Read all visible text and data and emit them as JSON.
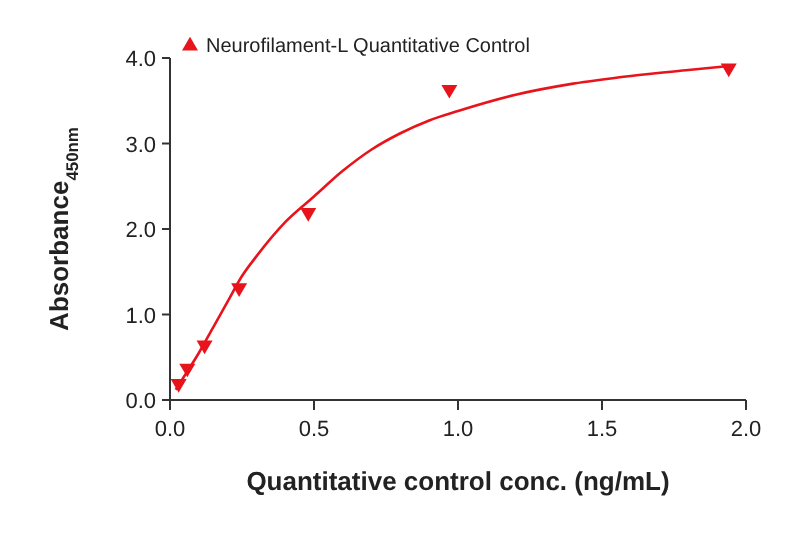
{
  "chart_data": {
    "type": "scatter",
    "xlabel": "Quantitative control conc. (ng/mL)",
    "ylabel": "Absorbance$_{450nm}$",
    "xlim": [
      0,
      2
    ],
    "xticks": [
      {
        "value": 0,
        "label": "0.0"
      },
      {
        "value": 0.5,
        "label": "0.5"
      },
      {
        "value": 1,
        "label": "1.0"
      },
      {
        "value": 1.5,
        "label": "1.5"
      },
      {
        "value": 2,
        "label": "2.0"
      }
    ],
    "ylim": [
      0,
      4
    ],
    "yticks": [
      {
        "value": 0,
        "label": "0.0"
      },
      {
        "value": 1,
        "label": "1.0"
      },
      {
        "value": 2,
        "label": "2.0"
      },
      {
        "value": 3,
        "label": "3.0"
      },
      {
        "value": 4,
        "label": "4.0"
      }
    ],
    "legend": "top left",
    "grid": false,
    "series": [
      {
        "name": "Neurofilament-L Quantitative Control",
        "marker": "triangle",
        "color": "#e8141c",
        "x": [
          0.03,
          0.06,
          0.12,
          0.24,
          0.48,
          0.97,
          1.94
        ],
        "values": [
          0.17,
          0.35,
          0.62,
          1.29,
          2.17,
          3.61,
          3.86
        ]
      },
      {
        "type": "line",
        "marker": "none",
        "color": "#e8141c",
        "x": [
          0.02,
          0.05,
          0.1,
          0.15,
          0.2,
          0.25,
          0.3,
          0.4,
          0.5,
          0.6,
          0.7,
          0.8,
          0.9,
          1.0,
          1.2,
          1.4,
          1.6,
          1.8,
          1.95
        ],
        "values": [
          0.12,
          0.28,
          0.55,
          0.85,
          1.15,
          1.45,
          1.68,
          2.08,
          2.38,
          2.68,
          2.93,
          3.12,
          3.27,
          3.38,
          3.57,
          3.7,
          3.79,
          3.86,
          3.91
        ]
      }
    ]
  }
}
